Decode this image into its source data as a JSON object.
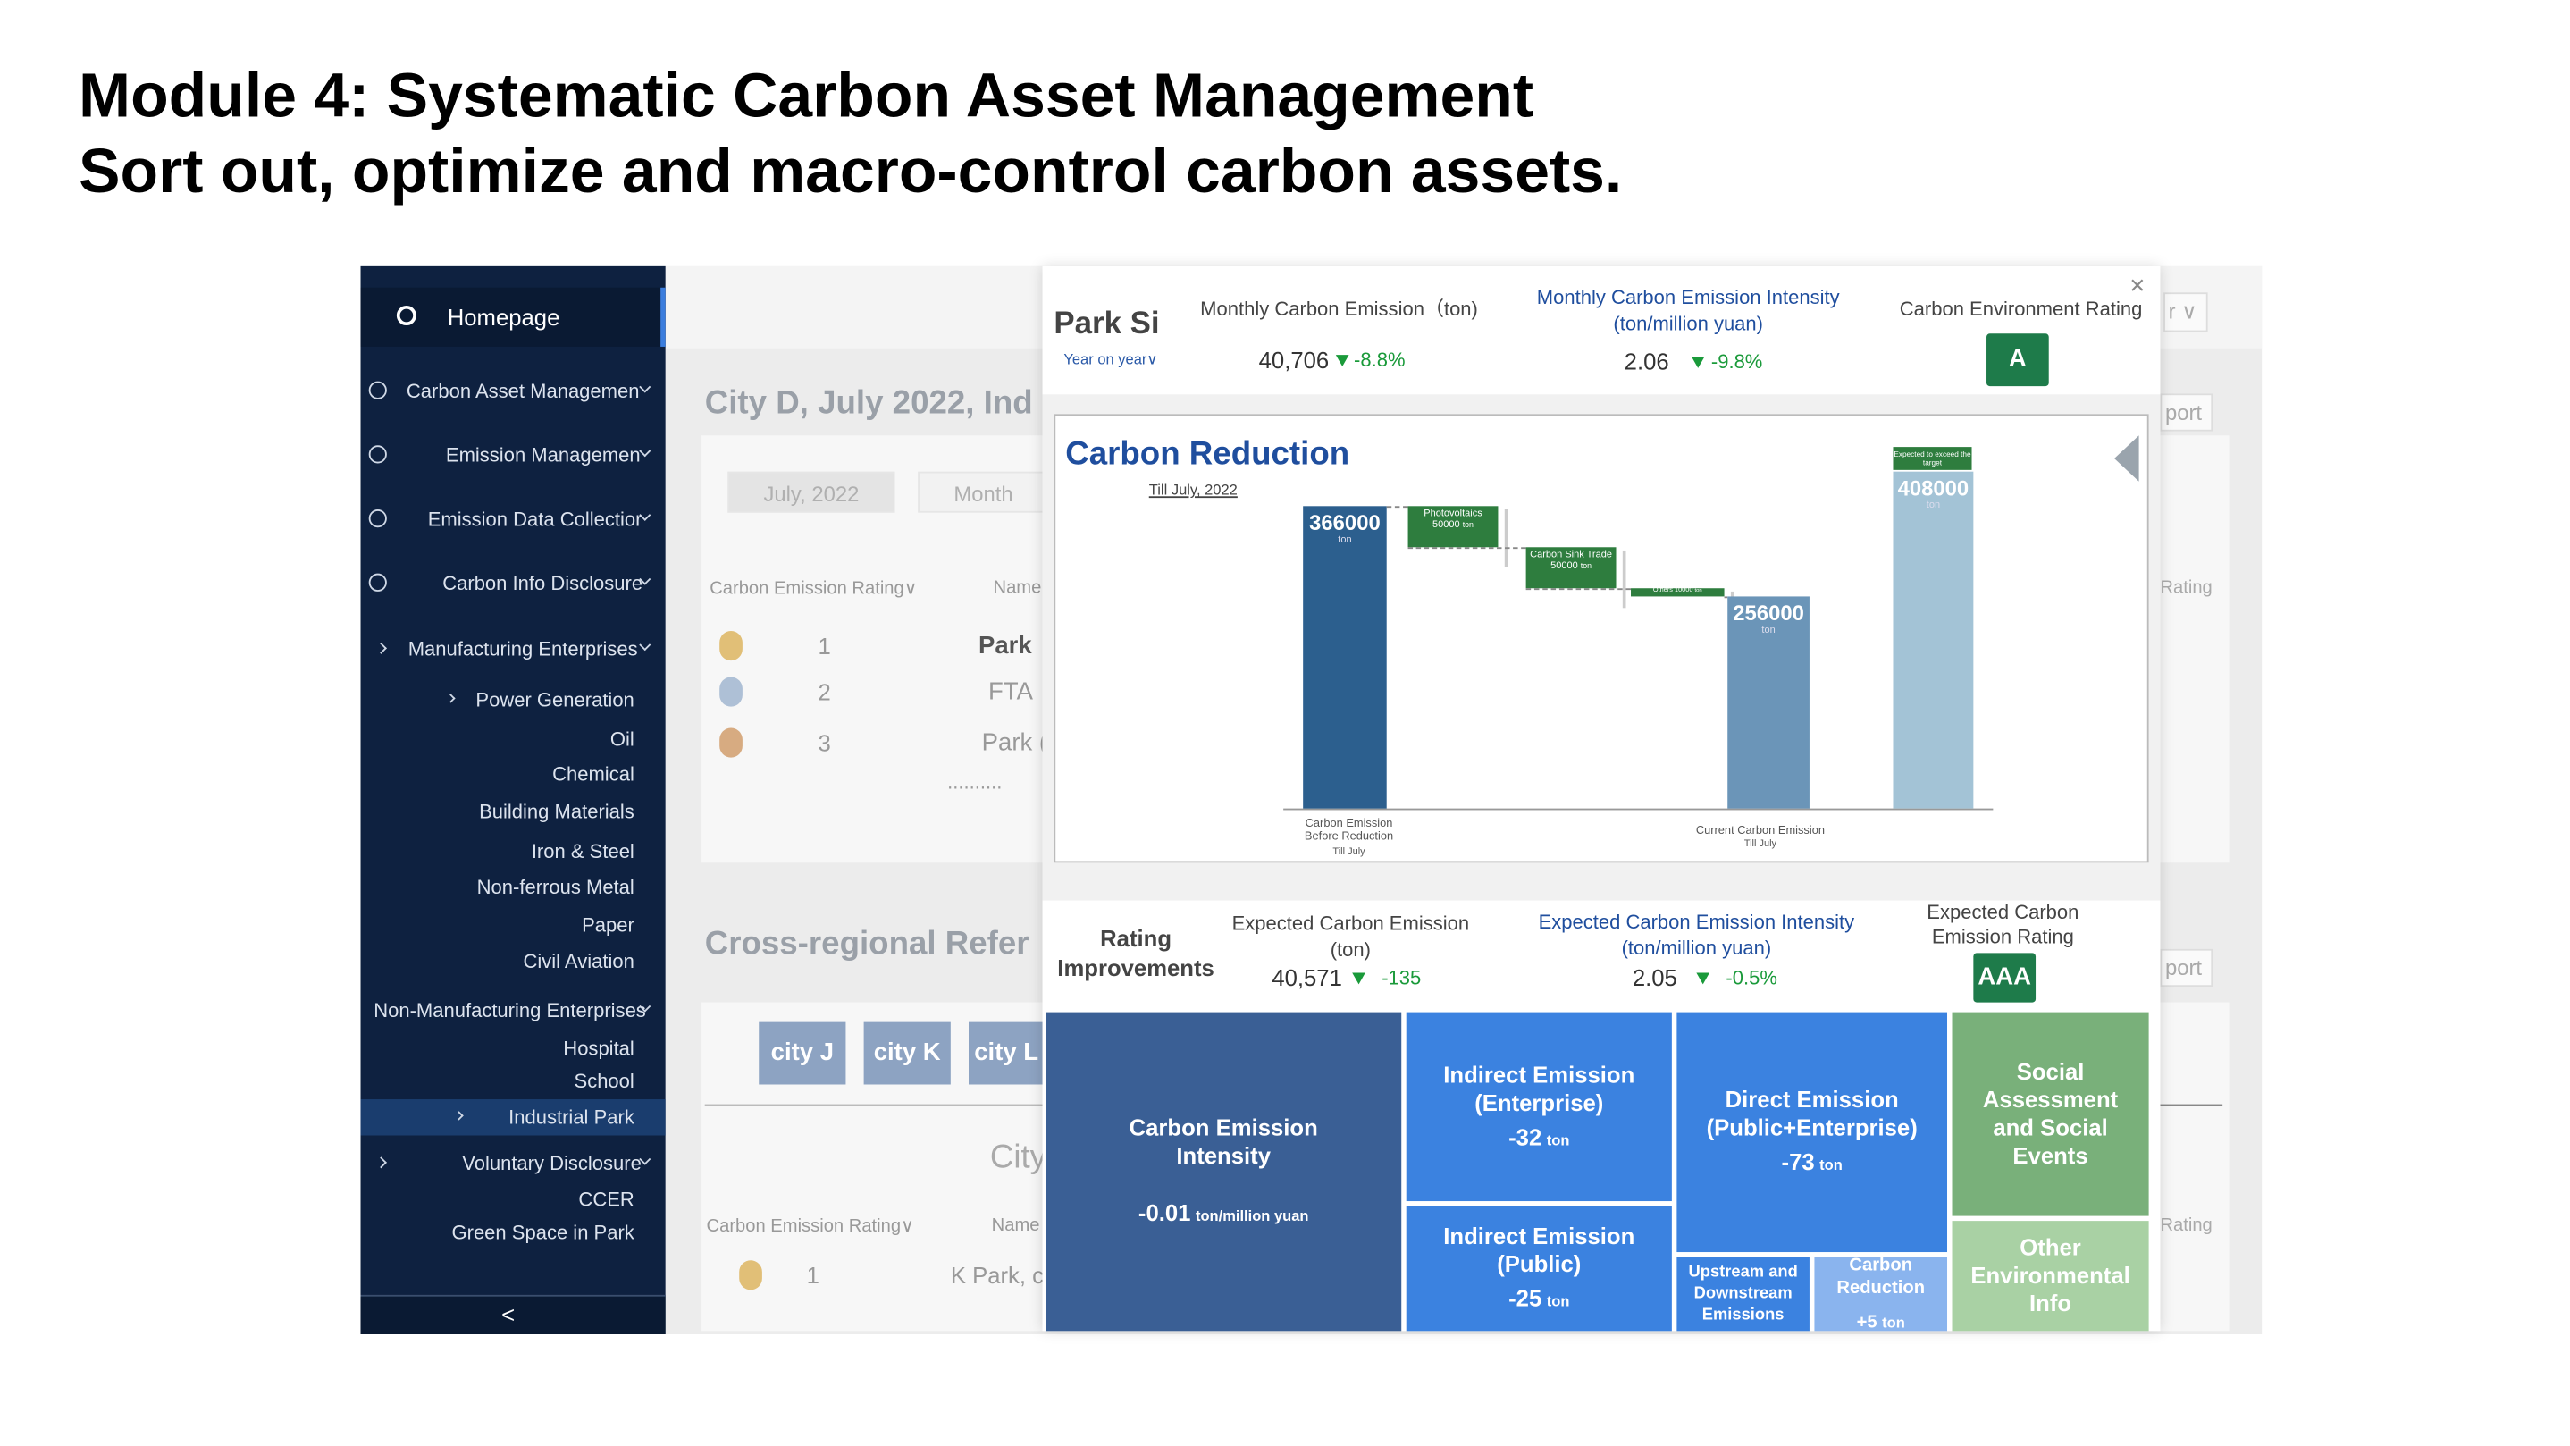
{
  "header": {
    "title": "Module 4: Systematic Carbon Asset Management",
    "subtitle": "Sort out, optimize and macro-control carbon assets."
  },
  "sidebar": {
    "home": "Homepage",
    "items": [
      "Carbon Asset Managemen",
      "Emission Managemen",
      "Emission Data Collectior",
      "Carbon Info Disclosure",
      "Manufacturing Enterprises",
      "Power Generation",
      "Oil",
      "Chemical",
      "Building Materials",
      "Iron & Steel",
      "Non-ferrous Metal",
      "Paper",
      "Civil Aviation",
      "Non-Manufacturing Enterprises",
      "Hospital",
      "School",
      "Industrial Park",
      "Voluntary Disclosure",
      "CCER",
      "Green Space in Park"
    ],
    "collapse": "<"
  },
  "background": {
    "heading": "City D, July 2022,  Ind",
    "tabs": [
      "July, 2022",
      "Month"
    ],
    "rating_header": "Carbon Emission Rating∨",
    "name_header": "Name",
    "ranks": [
      "1",
      "2",
      "3"
    ],
    "names": [
      "Park",
      "FTA",
      "Park ("
    ],
    "more": "..........",
    "section2": "Cross-regional Refer",
    "cities": [
      "city J",
      "city K",
      "city L"
    ],
    "city_heading": "City",
    "rating_header2": "Carbon Emission Rating∨",
    "name_header2": "Name",
    "rank2": "1",
    "name2": "K Park, c",
    "right_labels": [
      "r ∨",
      "port",
      "Rating",
      "port",
      "Rating"
    ]
  },
  "modal": {
    "park": "Park Si",
    "period": "Year on year∨",
    "close": "×",
    "kpis": [
      {
        "label": "Monthly Carbon Emission（ton)",
        "value": "40,706",
        "change": "-8.8%"
      },
      {
        "label": "Monthly Carbon Emission Intensity (ton/million yuan)",
        "value": "2.06",
        "change": "-9.8%"
      }
    ],
    "rating_label": "Carbon Environment Rating",
    "rating": "A",
    "chart": {
      "title": "Carbon Reduction",
      "subtitle": "Till July, 2022",
      "start": {
        "value": 366000,
        "unit": "ton",
        "label": "Carbon Emission Before Reduction",
        "note": "Till July"
      },
      "reductions": [
        {
          "name": "Photovoltaics",
          "value": 50000,
          "unit": "ton"
        },
        {
          "name": "Carbon Sink Trade",
          "value": 50000,
          "unit": "ton"
        },
        {
          "name": "Others",
          "value": 10000,
          "unit": "ton"
        }
      ],
      "current": {
        "value": 256000,
        "unit": "ton",
        "label": "Current Carbon Emission",
        "note": "Till July"
      },
      "expected": {
        "value": 408000,
        "unit": "ton",
        "note": "Expected to exceed the target"
      }
    },
    "improvements": {
      "title": "Rating Improvements",
      "kpis": [
        {
          "label": "Expected Carbon Emission (ton)",
          "value": "40,571",
          "change": "-135"
        },
        {
          "label": "Expected Carbon Emission Intensity (ton/million yuan)",
          "value": "2.05",
          "change": "-0.5%"
        }
      ],
      "rating_label": "Expected Carbon Emission Rating",
      "rating": "AAA"
    },
    "impacts": [
      {
        "label": "Carbon Emission Intensity",
        "value": "-0.01",
        "unit": "ton/million yuan"
      },
      {
        "label": "Indirect Emission (Enterprise)",
        "value": "-32",
        "unit": "ton"
      },
      {
        "label": "Direct Emission (Public+Enterprise)",
        "value": "-73",
        "unit": "ton"
      },
      {
        "label": "Social Assessment and Social Events"
      },
      {
        "label": "Indirect Emission (Public)",
        "value": "-25",
        "unit": "ton"
      },
      {
        "label": "Upstream and Downstream Emissions"
      },
      {
        "label": "Carbon Reduction",
        "value": "+5",
        "unit": "ton"
      },
      {
        "label": "Other Environmental Info"
      }
    ]
  }
}
